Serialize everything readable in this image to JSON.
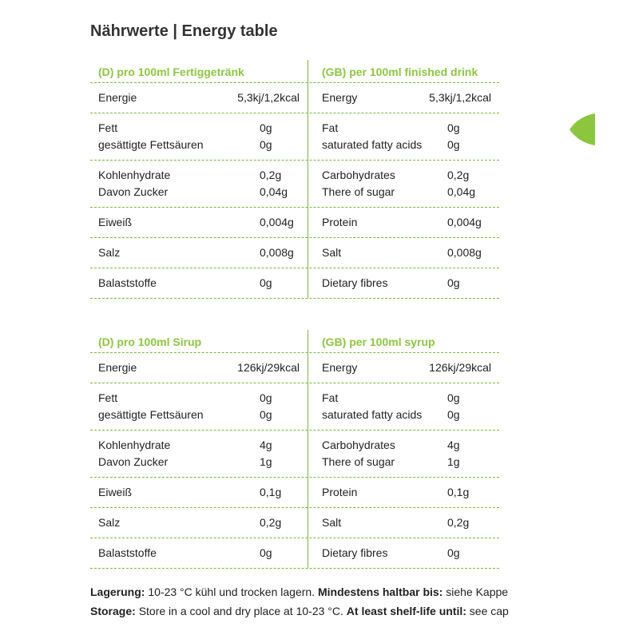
{
  "title": "Nährwerte | Energy table",
  "tables": [
    {
      "columns": [
        {
          "header": "(D) pro 100ml Fertiggetränk",
          "rows": [
            [
              [
                "Energie",
                "5,3kj/1,2kcal"
              ]
            ],
            [
              [
                "Fett",
                "0g"
              ],
              [
                "gesättigte Fettsäuren",
                "0g"
              ]
            ],
            [
              [
                "Kohlenhydrate",
                "0,2g"
              ],
              [
                "Davon Zucker",
                "0,04g"
              ]
            ],
            [
              [
                "Eiweiß",
                "0,004g"
              ]
            ],
            [
              [
                "Salz",
                "0,008g"
              ]
            ],
            [
              [
                "Balaststoffe",
                "0g"
              ]
            ]
          ]
        },
        {
          "header": "(GB) per 100ml finished drink",
          "rows": [
            [
              [
                "Energy",
                "5,3kj/1,2kcal"
              ]
            ],
            [
              [
                "Fat",
                "0g"
              ],
              [
                "saturated fatty acids",
                "0g"
              ]
            ],
            [
              [
                "Carbohydrates",
                "0,2g"
              ],
              [
                "There of sugar",
                "0,04g"
              ]
            ],
            [
              [
                "Protein",
                "0,004g"
              ]
            ],
            [
              [
                "Salt",
                "0,008g"
              ]
            ],
            [
              [
                "Dietary fibres",
                "0g"
              ]
            ]
          ]
        }
      ]
    },
    {
      "columns": [
        {
          "header": "(D) pro 100ml Sirup",
          "rows": [
            [
              [
                "Energie",
                "126kj/29kcal"
              ]
            ],
            [
              [
                "Fett",
                "0g"
              ],
              [
                "gesättigte Fettsäuren",
                "0g"
              ]
            ],
            [
              [
                "Kohlenhydrate",
                "4g"
              ],
              [
                "Davon Zucker",
                "1g"
              ]
            ],
            [
              [
                "Eiweiß",
                "0,1g"
              ]
            ],
            [
              [
                "Salz",
                "0,2g"
              ]
            ],
            [
              [
                "Balaststoffe",
                "0g"
              ]
            ]
          ]
        },
        {
          "header": "(GB) per 100ml syrup",
          "rows": [
            [
              [
                "Energy",
                "126kj/29kcal"
              ]
            ],
            [
              [
                "Fat",
                "0g"
              ],
              [
                "saturated fatty acids",
                "0g"
              ]
            ],
            [
              [
                "Carbohydrates",
                "4g"
              ],
              [
                "There of sugar",
                "1g"
              ]
            ],
            [
              [
                "Protein",
                "0,1g"
              ]
            ],
            [
              [
                "Salt",
                "0,2g"
              ]
            ],
            [
              [
                "Dietary fibres",
                "0g"
              ]
            ]
          ]
        }
      ]
    }
  ],
  "footer": [
    [
      "Lagerung:",
      "10-23 °C kühl und trocken lagern.",
      "Mindestens haltbar bis:",
      "siehe Kappe"
    ],
    [
      "Storage:",
      "Store in a cool and dry place at 10-23 °C.",
      "At least shelf-life until:",
      "see cap"
    ]
  ]
}
